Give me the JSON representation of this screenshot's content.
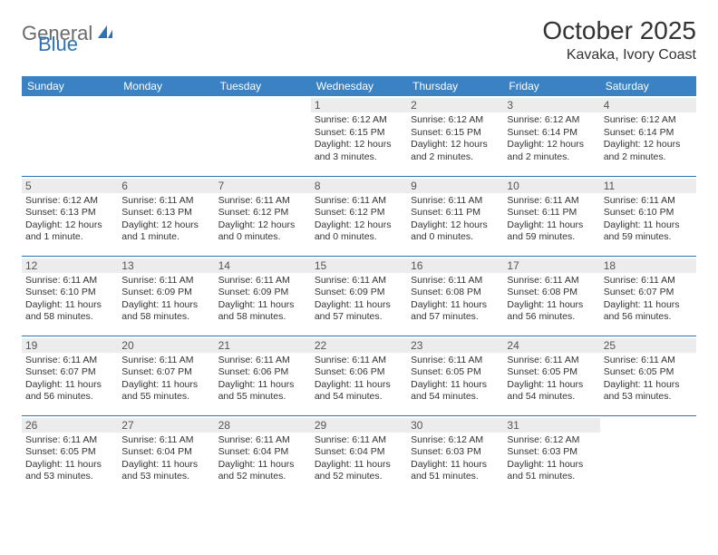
{
  "brand": {
    "general": "General",
    "blue": "Blue"
  },
  "title": "October 2025",
  "location": "Kavaka, Ivory Coast",
  "colors": {
    "header_bar": "#3a82c4",
    "row_border": "#2d72b5",
    "daynum_bg": "#ececec",
    "text": "#333333",
    "logo_gray": "#6b6b6b",
    "logo_blue": "#2d72b5",
    "background": "#ffffff"
  },
  "typography": {
    "title_fontsize": 28,
    "location_fontsize": 16,
    "header_fontsize": 12,
    "cell_fontsize": 10.5
  },
  "weekdays": [
    "Sunday",
    "Monday",
    "Tuesday",
    "Wednesday",
    "Thursday",
    "Friday",
    "Saturday"
  ],
  "weeks": [
    [
      {
        "day": "",
        "sunrise": "",
        "sunset": "",
        "daylight": ""
      },
      {
        "day": "",
        "sunrise": "",
        "sunset": "",
        "daylight": ""
      },
      {
        "day": "",
        "sunrise": "",
        "sunset": "",
        "daylight": ""
      },
      {
        "day": "1",
        "sunrise": "Sunrise: 6:12 AM",
        "sunset": "Sunset: 6:15 PM",
        "daylight": "Daylight: 12 hours and 3 minutes."
      },
      {
        "day": "2",
        "sunrise": "Sunrise: 6:12 AM",
        "sunset": "Sunset: 6:15 PM",
        "daylight": "Daylight: 12 hours and 2 minutes."
      },
      {
        "day": "3",
        "sunrise": "Sunrise: 6:12 AM",
        "sunset": "Sunset: 6:14 PM",
        "daylight": "Daylight: 12 hours and 2 minutes."
      },
      {
        "day": "4",
        "sunrise": "Sunrise: 6:12 AM",
        "sunset": "Sunset: 6:14 PM",
        "daylight": "Daylight: 12 hours and 2 minutes."
      }
    ],
    [
      {
        "day": "5",
        "sunrise": "Sunrise: 6:12 AM",
        "sunset": "Sunset: 6:13 PM",
        "daylight": "Daylight: 12 hours and 1 minute."
      },
      {
        "day": "6",
        "sunrise": "Sunrise: 6:11 AM",
        "sunset": "Sunset: 6:13 PM",
        "daylight": "Daylight: 12 hours and 1 minute."
      },
      {
        "day": "7",
        "sunrise": "Sunrise: 6:11 AM",
        "sunset": "Sunset: 6:12 PM",
        "daylight": "Daylight: 12 hours and 0 minutes."
      },
      {
        "day": "8",
        "sunrise": "Sunrise: 6:11 AM",
        "sunset": "Sunset: 6:12 PM",
        "daylight": "Daylight: 12 hours and 0 minutes."
      },
      {
        "day": "9",
        "sunrise": "Sunrise: 6:11 AM",
        "sunset": "Sunset: 6:11 PM",
        "daylight": "Daylight: 12 hours and 0 minutes."
      },
      {
        "day": "10",
        "sunrise": "Sunrise: 6:11 AM",
        "sunset": "Sunset: 6:11 PM",
        "daylight": "Daylight: 11 hours and 59 minutes."
      },
      {
        "day": "11",
        "sunrise": "Sunrise: 6:11 AM",
        "sunset": "Sunset: 6:10 PM",
        "daylight": "Daylight: 11 hours and 59 minutes."
      }
    ],
    [
      {
        "day": "12",
        "sunrise": "Sunrise: 6:11 AM",
        "sunset": "Sunset: 6:10 PM",
        "daylight": "Daylight: 11 hours and 58 minutes."
      },
      {
        "day": "13",
        "sunrise": "Sunrise: 6:11 AM",
        "sunset": "Sunset: 6:09 PM",
        "daylight": "Daylight: 11 hours and 58 minutes."
      },
      {
        "day": "14",
        "sunrise": "Sunrise: 6:11 AM",
        "sunset": "Sunset: 6:09 PM",
        "daylight": "Daylight: 11 hours and 58 minutes."
      },
      {
        "day": "15",
        "sunrise": "Sunrise: 6:11 AM",
        "sunset": "Sunset: 6:09 PM",
        "daylight": "Daylight: 11 hours and 57 minutes."
      },
      {
        "day": "16",
        "sunrise": "Sunrise: 6:11 AM",
        "sunset": "Sunset: 6:08 PM",
        "daylight": "Daylight: 11 hours and 57 minutes."
      },
      {
        "day": "17",
        "sunrise": "Sunrise: 6:11 AM",
        "sunset": "Sunset: 6:08 PM",
        "daylight": "Daylight: 11 hours and 56 minutes."
      },
      {
        "day": "18",
        "sunrise": "Sunrise: 6:11 AM",
        "sunset": "Sunset: 6:07 PM",
        "daylight": "Daylight: 11 hours and 56 minutes."
      }
    ],
    [
      {
        "day": "19",
        "sunrise": "Sunrise: 6:11 AM",
        "sunset": "Sunset: 6:07 PM",
        "daylight": "Daylight: 11 hours and 56 minutes."
      },
      {
        "day": "20",
        "sunrise": "Sunrise: 6:11 AM",
        "sunset": "Sunset: 6:07 PM",
        "daylight": "Daylight: 11 hours and 55 minutes."
      },
      {
        "day": "21",
        "sunrise": "Sunrise: 6:11 AM",
        "sunset": "Sunset: 6:06 PM",
        "daylight": "Daylight: 11 hours and 55 minutes."
      },
      {
        "day": "22",
        "sunrise": "Sunrise: 6:11 AM",
        "sunset": "Sunset: 6:06 PM",
        "daylight": "Daylight: 11 hours and 54 minutes."
      },
      {
        "day": "23",
        "sunrise": "Sunrise: 6:11 AM",
        "sunset": "Sunset: 6:05 PM",
        "daylight": "Daylight: 11 hours and 54 minutes."
      },
      {
        "day": "24",
        "sunrise": "Sunrise: 6:11 AM",
        "sunset": "Sunset: 6:05 PM",
        "daylight": "Daylight: 11 hours and 54 minutes."
      },
      {
        "day": "25",
        "sunrise": "Sunrise: 6:11 AM",
        "sunset": "Sunset: 6:05 PM",
        "daylight": "Daylight: 11 hours and 53 minutes."
      }
    ],
    [
      {
        "day": "26",
        "sunrise": "Sunrise: 6:11 AM",
        "sunset": "Sunset: 6:05 PM",
        "daylight": "Daylight: 11 hours and 53 minutes."
      },
      {
        "day": "27",
        "sunrise": "Sunrise: 6:11 AM",
        "sunset": "Sunset: 6:04 PM",
        "daylight": "Daylight: 11 hours and 53 minutes."
      },
      {
        "day": "28",
        "sunrise": "Sunrise: 6:11 AM",
        "sunset": "Sunset: 6:04 PM",
        "daylight": "Daylight: 11 hours and 52 minutes."
      },
      {
        "day": "29",
        "sunrise": "Sunrise: 6:11 AM",
        "sunset": "Sunset: 6:04 PM",
        "daylight": "Daylight: 11 hours and 52 minutes."
      },
      {
        "day": "30",
        "sunrise": "Sunrise: 6:12 AM",
        "sunset": "Sunset: 6:03 PM",
        "daylight": "Daylight: 11 hours and 51 minutes."
      },
      {
        "day": "31",
        "sunrise": "Sunrise: 6:12 AM",
        "sunset": "Sunset: 6:03 PM",
        "daylight": "Daylight: 11 hours and 51 minutes."
      },
      {
        "day": "",
        "sunrise": "",
        "sunset": "",
        "daylight": ""
      }
    ]
  ]
}
